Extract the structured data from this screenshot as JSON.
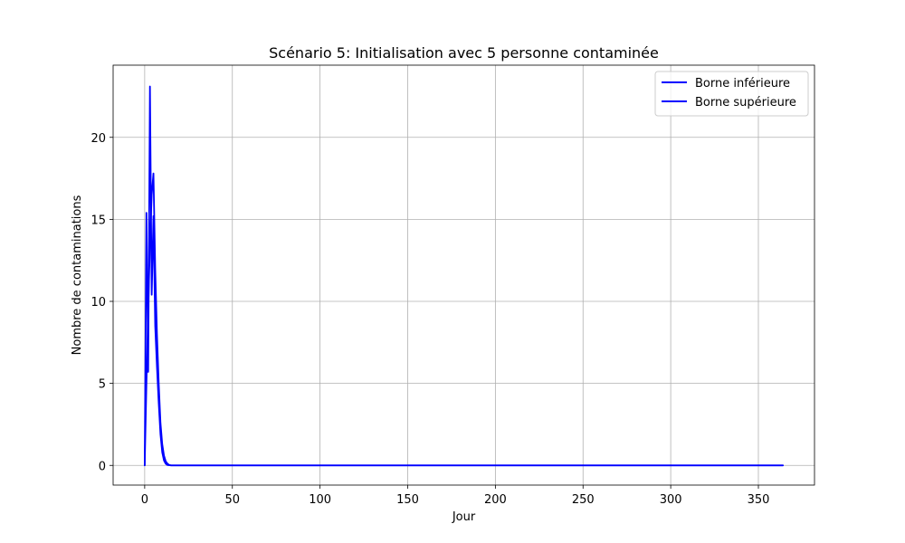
{
  "chart_data": {
    "type": "line",
    "title": "Scénario 5: Initialisation avec 5 personne contaminée",
    "xlabel": "Jour",
    "ylabel": "Nombre de contaminations",
    "xlim": [
      -18,
      382
    ],
    "ylim": [
      -1.2,
      24.4
    ],
    "xticks": [
      0,
      50,
      100,
      150,
      200,
      250,
      300,
      350
    ],
    "yticks": [
      0,
      5,
      10,
      15,
      20
    ],
    "grid": true,
    "legend_position": "upper-right",
    "series": [
      {
        "name": "Borne inférieure",
        "color": "#0000ff",
        "x": [
          0,
          1,
          2,
          3,
          4,
          5,
          6,
          7,
          8,
          9,
          10,
          11,
          12,
          13,
          15,
          364
        ],
        "y": [
          0,
          15.4,
          5.7,
          23.1,
          10.4,
          15.2,
          8.5,
          6.0,
          3.8,
          1.9,
          0.8,
          0.3,
          0.1,
          0.02,
          0,
          0
        ]
      },
      {
        "name": "Borne supérieure",
        "color": "#0000ff",
        "x": [
          0,
          1,
          2,
          3,
          4,
          5,
          6,
          7,
          8,
          9,
          10,
          11,
          12,
          13,
          14,
          15,
          364
        ],
        "y": [
          0,
          5.0,
          9.5,
          13.5,
          16.5,
          17.8,
          12.0,
          8.0,
          5.0,
          2.6,
          1.3,
          0.6,
          0.25,
          0.1,
          0.03,
          0,
          0
        ]
      }
    ]
  }
}
